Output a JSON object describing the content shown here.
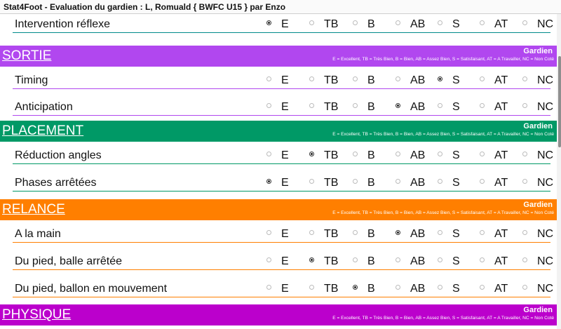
{
  "window": {
    "title": "Stat4Foot - Evaluation du gardien : L, Romuald { BWFC U15 } par Enzo"
  },
  "options": [
    "E",
    "TB",
    "B",
    "AB",
    "S",
    "AT",
    "NC"
  ],
  "legend": "E = Excellent, TB = Très Bien, B = Bien, AB = Assez Bien, S = Satisfaisant, AT = A Travailler, NC = Non Coté",
  "role": "Gardien",
  "colors": {
    "sortie": "#b147ef",
    "placement": "#009966",
    "relance": "#ff7f00",
    "physique": "#bb00cc",
    "first_line": "#008b8b"
  },
  "blocks": [
    {
      "type": "row",
      "label": "Intervention réflexe",
      "selected": "E",
      "color": "#008b8b"
    },
    {
      "type": "header",
      "title": "SORTIE",
      "color": "#b147ef"
    },
    {
      "type": "row",
      "label": "Timing",
      "selected": "S",
      "color": "#b147ef"
    },
    {
      "type": "row",
      "label": "Anticipation",
      "selected": "AB",
      "color": "#b147ef"
    },
    {
      "type": "header",
      "title": "PLACEMENT",
      "color": "#009966"
    },
    {
      "type": "row",
      "label": "Réduction angles",
      "selected": "TB",
      "color": "#009966"
    },
    {
      "type": "row",
      "label": "Phases arrêtées",
      "selected": "E",
      "color": "#009966"
    },
    {
      "type": "header",
      "title": "RELANCE",
      "color": "#ff7f00"
    },
    {
      "type": "row",
      "label": "A la main",
      "selected": "AB",
      "color": "#ff7f00"
    },
    {
      "type": "row",
      "label": "Du pied, balle arrêtée",
      "selected": "TB",
      "color": "#ff7f00"
    },
    {
      "type": "row",
      "label": "Du pied, ballon en mouvement",
      "selected": "B",
      "color": "#ff7f00"
    },
    {
      "type": "header",
      "title": "PHYSIQUE",
      "color": "#bb00cc"
    }
  ]
}
